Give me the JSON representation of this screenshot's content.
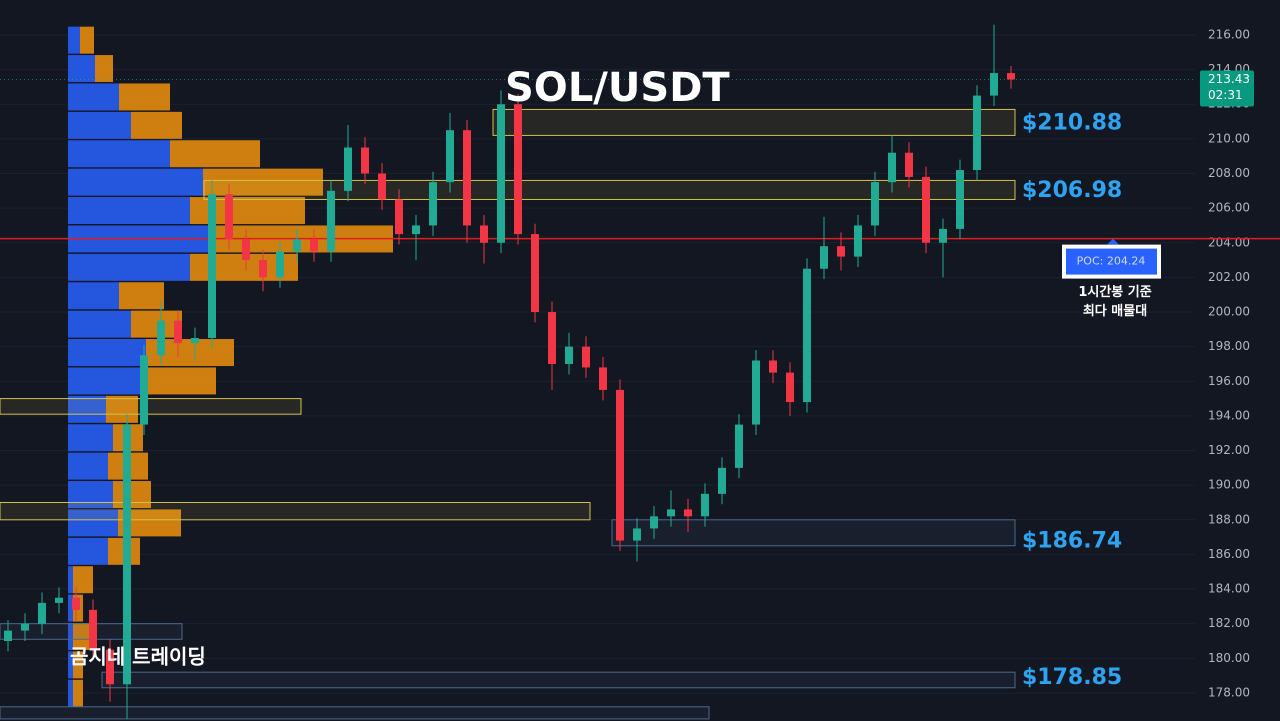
{
  "chart_data": {
    "type": "candlestick",
    "title": "SOL/USDT",
    "watermark": "곰지네 트레이딩",
    "up_color": "#22ab94",
    "down_color": "#f23645",
    "open": [
      181.0,
      181.6,
      182.0,
      183.2,
      183.5,
      182.8,
      180.5,
      178.5,
      193.5,
      197.5,
      199.5,
      198.2,
      198.5,
      206.8,
      204.2,
      203.0,
      202.0,
      203.5,
      204.2,
      203.5,
      207.0,
      209.5,
      208.0,
      206.5,
      204.5,
      205.0,
      207.5,
      210.5,
      205.0,
      204.0,
      212.0,
      204.5,
      200.0,
      197.0,
      198.0,
      196.8,
      195.5,
      186.8,
      187.5,
      188.2,
      188.6,
      188.2,
      189.5,
      191.0,
      193.5,
      197.2,
      196.5,
      194.8,
      202.5,
      203.8,
      203.2,
      205.0,
      207.5,
      209.2,
      207.8,
      204.0,
      204.8,
      208.2,
      212.5,
      213.8
    ],
    "high": [
      182.2,
      182.6,
      183.8,
      184.1,
      184.1,
      183.4,
      181.1,
      194.1,
      198.1,
      200.6,
      200.1,
      199.1,
      207.6,
      207.4,
      204.8,
      203.6,
      204.1,
      204.8,
      204.8,
      207.6,
      210.8,
      210.1,
      208.6,
      207.1,
      205.6,
      208.1,
      211.5,
      211.1,
      205.6,
      212.8,
      212.6,
      205.1,
      200.6,
      198.8,
      198.6,
      197.4,
      196.1,
      188.1,
      188.8,
      189.7,
      189.2,
      190.1,
      191.6,
      194.1,
      197.8,
      197.8,
      197.1,
      203.1,
      205.5,
      204.6,
      205.6,
      208.1,
      210.2,
      209.8,
      208.4,
      205.4,
      208.8,
      213.1,
      216.6,
      214.2
    ],
    "low": [
      180.4,
      181.0,
      181.4,
      182.6,
      182.2,
      179.9,
      177.5,
      176.5,
      192.9,
      196.9,
      197.4,
      197.2,
      197.9,
      203.6,
      202.4,
      201.2,
      201.4,
      202.9,
      202.9,
      202.9,
      206.4,
      207.4,
      205.9,
      203.9,
      203.0,
      204.4,
      206.9,
      204.0,
      202.8,
      203.4,
      203.9,
      199.4,
      195.5,
      196.4,
      196.2,
      194.9,
      186.2,
      185.6,
      186.9,
      187.6,
      187.3,
      187.6,
      188.9,
      190.4,
      192.9,
      195.9,
      194.0,
      194.2,
      201.9,
      202.4,
      202.6,
      204.4,
      206.9,
      207.2,
      203.4,
      202.0,
      204.2,
      207.6,
      211.9,
      212.9
    ],
    "close": [
      181.6,
      182.0,
      183.2,
      183.5,
      182.8,
      180.5,
      178.5,
      193.5,
      197.5,
      199.5,
      198.2,
      198.5,
      206.8,
      204.2,
      203.0,
      202.0,
      203.5,
      204.2,
      203.5,
      207.0,
      209.5,
      208.0,
      206.5,
      204.5,
      205.0,
      207.5,
      210.5,
      205.0,
      204.0,
      212.0,
      204.5,
      200.0,
      197.0,
      198.0,
      196.8,
      195.5,
      186.8,
      187.5,
      188.2,
      188.6,
      188.2,
      189.5,
      191.0,
      193.5,
      197.2,
      196.5,
      194.8,
      202.5,
      203.8,
      203.2,
      205.0,
      207.5,
      209.2,
      207.8,
      204.0,
      204.8,
      208.2,
      212.5,
      213.8,
      213.43
    ],
    "ylim": [
      176.38,
      218.02
    ],
    "yticks": [
      {
        "value": 178,
        "label": "178.00"
      },
      {
        "value": 180,
        "label": "180.00"
      },
      {
        "value": 182,
        "label": "182.00"
      },
      {
        "value": 184,
        "label": "184.00"
      },
      {
        "value": 186,
        "label": "186.00"
      },
      {
        "value": 188,
        "label": "188.00"
      },
      {
        "value": 190,
        "label": "190.00"
      },
      {
        "value": 192,
        "label": "192.00"
      },
      {
        "value": 194,
        "label": "194.00"
      },
      {
        "value": 196,
        "label": "196.00"
      },
      {
        "value": 198,
        "label": "198.00"
      },
      {
        "value": 200,
        "label": "200.00"
      },
      {
        "value": 202,
        "label": "202.00"
      },
      {
        "value": 204,
        "label": "204.00"
      },
      {
        "value": 206,
        "label": "206.00"
      },
      {
        "value": 208,
        "label": "208.00"
      },
      {
        "value": 210,
        "label": "210.00"
      },
      {
        "value": 212,
        "label": "212.00"
      },
      {
        "value": 214,
        "label": "214.00"
      },
      {
        "value": 216,
        "label": "216.00"
      }
    ],
    "grid": true,
    "volume_profile": {
      "buy_color": "#2962ff",
      "sell_color": "#f0920c",
      "price": [
        215.7,
        214.06,
        212.42,
        210.78,
        209.14,
        207.5,
        205.86,
        204.22,
        202.58,
        200.94,
        199.3,
        197.66,
        196.02,
        194.38,
        192.74,
        191.1,
        189.46,
        187.82,
        186.18,
        184.54,
        182.9,
        181.26,
        179.62,
        177.98
      ],
      "buy": [
        12,
        27,
        51,
        63,
        102,
        135,
        122,
        140,
        122,
        51,
        63,
        78,
        78,
        38,
        45,
        40,
        45,
        50,
        40,
        5,
        5,
        5,
        5,
        5
      ],
      "sell": [
        14,
        18,
        51,
        51,
        90,
        120,
        115,
        185,
        108,
        45,
        51,
        88,
        70,
        32,
        30,
        40,
        38,
        63,
        32,
        20,
        10,
        20,
        10,
        10
      ]
    },
    "zones": [
      {
        "low": 210.2,
        "high": 211.7,
        "from": 29,
        "to": 59,
        "color": "#d4c24a"
      },
      {
        "low": 206.5,
        "high": 207.6,
        "from": 12,
        "to": 59,
        "color": "#d4c24a"
      },
      {
        "low": 186.5,
        "high": 188.0,
        "from": 36,
        "to": 59,
        "color": "#4a6a8f"
      },
      {
        "low": 178.3,
        "high": 179.2,
        "from": 6,
        "to": 59,
        "color": "#4a6a8f"
      },
      {
        "low": 194.1,
        "high": 195.0,
        "from": 0,
        "to": 17,
        "color": "#d4c24a"
      },
      {
        "low": 188.0,
        "high": 189.0,
        "from": 0,
        "to": 34,
        "color": "#d4c24a"
      },
      {
        "low": 181.1,
        "high": 182.0,
        "from": 0,
        "to": 10,
        "color": "#4a6a8f"
      },
      {
        "low": 176.5,
        "high": 177.2,
        "from": 0,
        "to": 41,
        "color": "#4a6a8f"
      }
    ],
    "price_labels": [
      {
        "value": 210.88,
        "label": "$210.88"
      },
      {
        "value": 206.98,
        "label": "$206.98"
      },
      {
        "value": 186.74,
        "label": "$186.74"
      },
      {
        "value": 178.85,
        "label": "$178.85"
      }
    ],
    "poc": {
      "value": 204.24,
      "label": "POC: 204.24",
      "color": "#e01e1e",
      "note": [
        "1시간봉 기준",
        "최다 매물대"
      ]
    },
    "last_price": {
      "value": 213.43,
      "label": "213.43",
      "countdown": "02:31"
    }
  }
}
